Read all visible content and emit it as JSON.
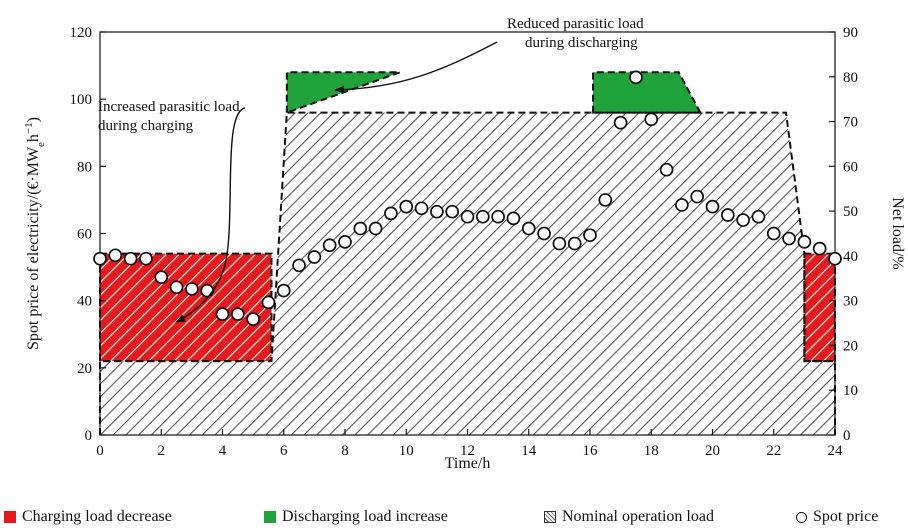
{
  "chart_data": {
    "type": "area",
    "xlabel": "Time/h",
    "ylabel": "Spot price of electricity/(€·MW",
    "ylabel_sub": "e",
    "ylabel_tail": "h",
    "ylabel_sup": "−1",
    "ylabel_close": ")",
    "y2label": "Net load/%",
    "xlim": [
      0,
      24
    ],
    "ylim": [
      0,
      120
    ],
    "y2lim": [
      0,
      90
    ],
    "xticks": [
      0,
      2,
      4,
      6,
      8,
      10,
      12,
      14,
      16,
      18,
      20,
      22,
      24
    ],
    "yticks": [
      0,
      20,
      40,
      60,
      80,
      100,
      120
    ],
    "y2ticks": [
      0,
      10,
      20,
      30,
      40,
      50,
      60,
      70,
      80,
      90
    ],
    "grid": false,
    "legend_position": "bottom",
    "series": [
      {
        "name": "Charging load decrease",
        "type": "area",
        "color": "#e41a1c",
        "regions": [
          {
            "x0": 0,
            "x1": 5.6,
            "lower": 22,
            "upper": 54
          },
          {
            "x0": 23,
            "x1": 24,
            "lower": 22,
            "upper": 54
          }
        ]
      },
      {
        "name": "Discharging load increase",
        "type": "area",
        "color": "#1fa33a",
        "regions": [
          {
            "x": [
              6.1,
              9.3,
              9.8,
              6.1
            ],
            "lower": 96,
            "upper": 108
          },
          {
            "x": [
              16.1,
              16.7,
              18.9,
              19.6
            ],
            "lower": 96,
            "upper": 108
          }
        ]
      },
      {
        "name": "Nominal operation load",
        "type": "area",
        "color": "#555555",
        "outline": {
          "x": [
            0,
            0,
            5.6,
            6.1,
            22.4,
            23,
            23,
            24,
            24
          ],
          "y": [
            0,
            22,
            22,
            96,
            96,
            54,
            22,
            22,
            0
          ]
        }
      },
      {
        "name": "Spot price",
        "type": "scatter",
        "x": [
          0,
          0.5,
          1,
          1.5,
          2,
          2.5,
          3,
          3.5,
          4,
          4.5,
          5,
          5.5,
          6,
          6.5,
          7,
          7.5,
          8,
          8.5,
          9,
          9.5,
          10,
          10.5,
          11,
          11.5,
          12,
          12.5,
          13,
          13.5,
          14,
          14.5,
          15,
          15.5,
          16,
          16.5,
          17,
          17.5,
          18,
          18.5,
          19,
          19.5,
          20,
          20.5,
          21,
          21.5,
          22,
          22.5,
          23,
          23.5,
          24
        ],
        "y": [
          52.5,
          53.5,
          52.5,
          52.5,
          47,
          44,
          43.5,
          43,
          36,
          36,
          34.5,
          39.5,
          43,
          50.5,
          53,
          56.5,
          57.5,
          61.5,
          61.5,
          66,
          68,
          67.5,
          66.5,
          66.5,
          65,
          65,
          65,
          64.5,
          61.5,
          60,
          57,
          57,
          59.5,
          70,
          93,
          106.5,
          94,
          79,
          68.5,
          71,
          68,
          65.5,
          64,
          65,
          60,
          58.5,
          57.5,
          55.5,
          52.5
        ]
      }
    ],
    "annotations": [
      {
        "text_lines": [
          "Reduced parasitic load",
          "during discharging"
        ]
      },
      {
        "text_lines": [
          "Increased parasitic load",
          "during charging"
        ]
      }
    ]
  },
  "legend": {
    "items": [
      {
        "label": "Charging load decrease"
      },
      {
        "label": "Discharging load increase"
      },
      {
        "label": "Nominal operation load"
      },
      {
        "label": "Spot price"
      }
    ]
  }
}
